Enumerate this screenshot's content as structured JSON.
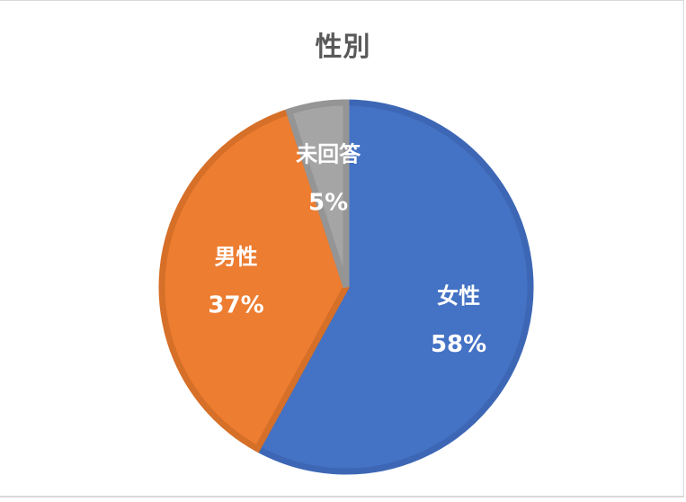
{
  "chart_data": {
    "type": "pie",
    "title": "性別",
    "categories": [
      "女性",
      "男性",
      "未回答"
    ],
    "values": [
      58,
      37,
      5
    ],
    "labels": [
      "58%",
      "37%",
      "5%"
    ],
    "colors": [
      "#4472c4",
      "#ed7d31",
      "#a5a5a5"
    ],
    "border_colors": [
      "#3d67b5",
      "#d66f28",
      "#959595"
    ],
    "legend": "none",
    "start_angle_deg": 0,
    "direction": "clockwise"
  }
}
